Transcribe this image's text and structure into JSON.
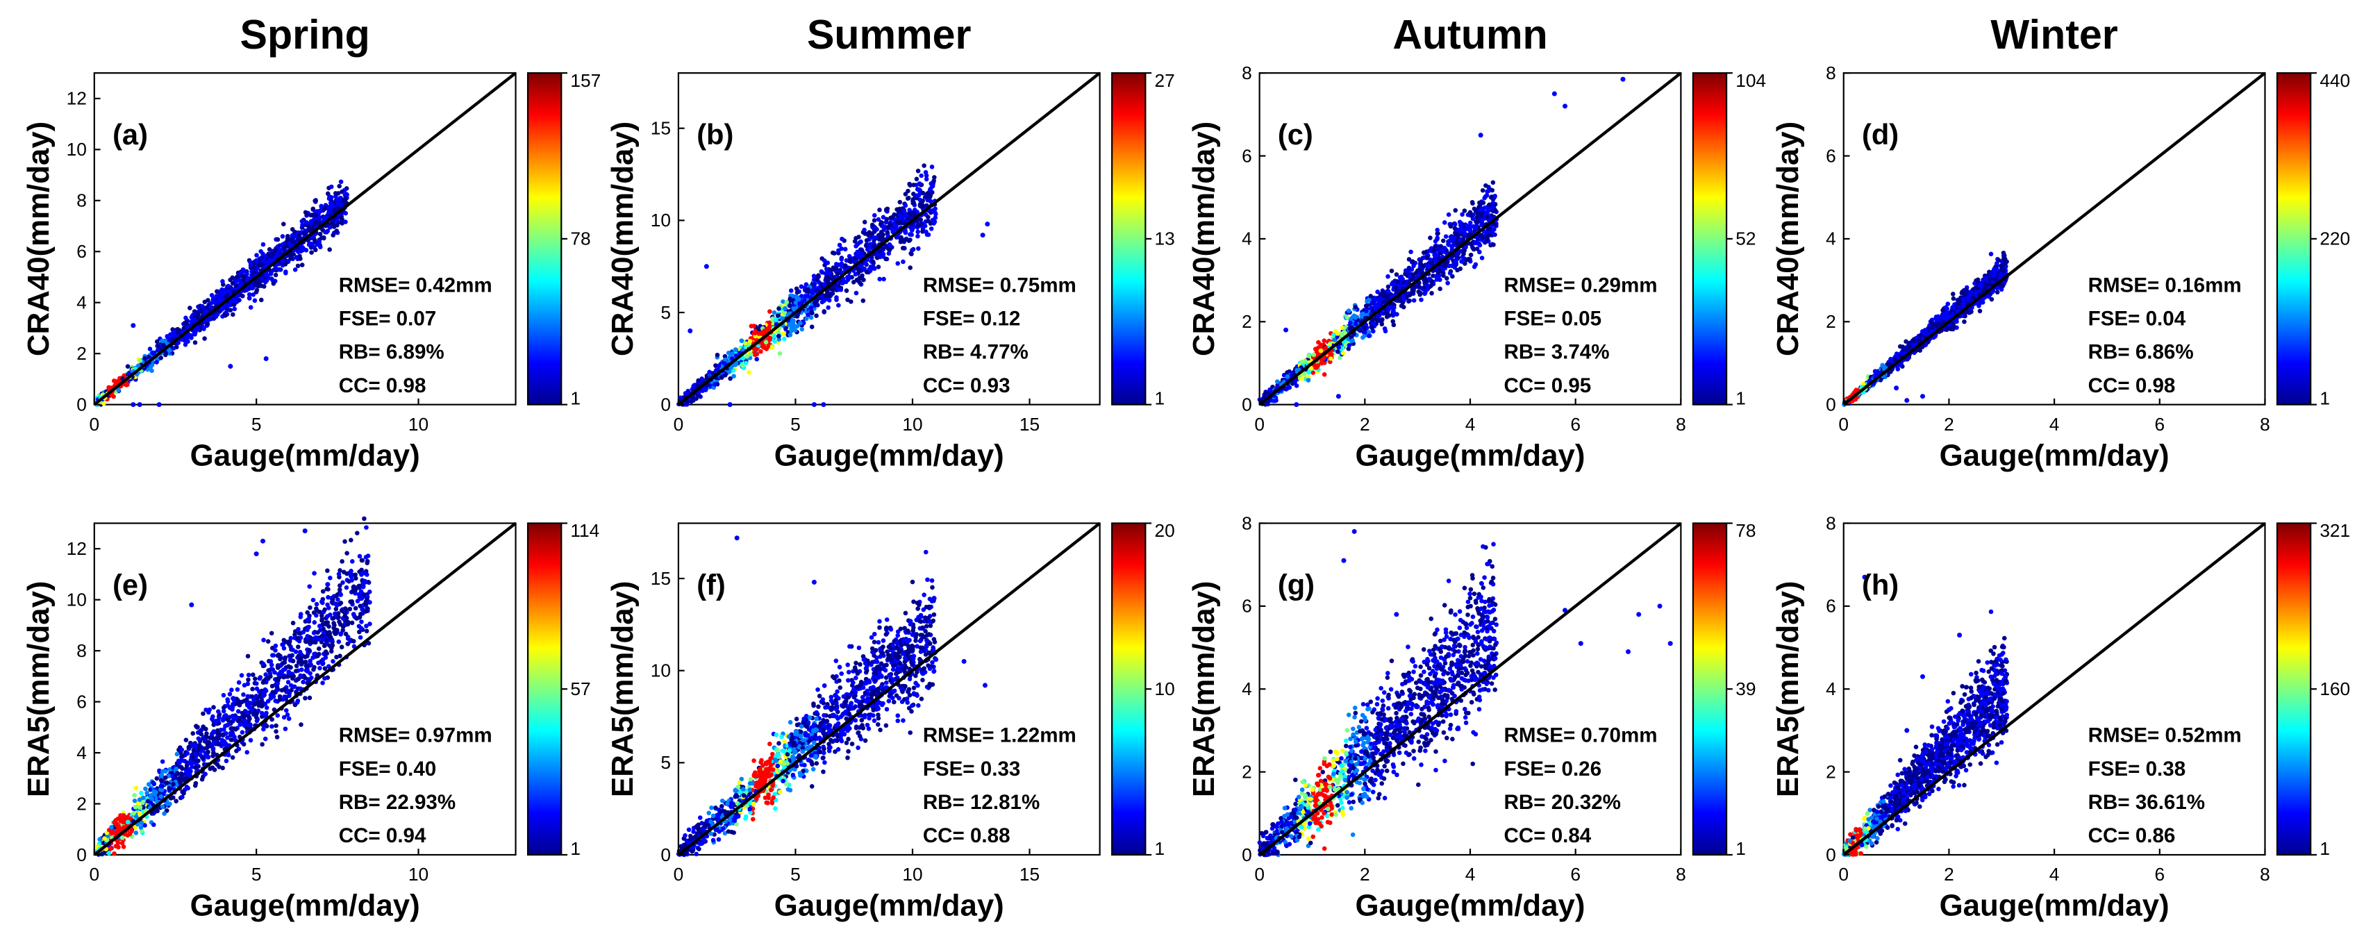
{
  "figure": {
    "columns": [
      "Spring",
      "Summer",
      "Autumn",
      "Winter"
    ],
    "colormap": [
      "#00008f",
      "#0000ff",
      "#0080ff",
      "#00ffff",
      "#80ff80",
      "#ffff00",
      "#ff8000",
      "#ff0000",
      "#800000"
    ]
  },
  "chart_data": [
    {
      "type": "scatter",
      "panel_label": "(a)",
      "season": "Spring",
      "xlabel": "Gauge(mm/day)",
      "ylabel": "CRA40(mm/day)",
      "xlim": [
        0,
        13
      ],
      "ylim": [
        0,
        13
      ],
      "xticks": [
        0,
        5,
        10
      ],
      "yticks": [
        0,
        2,
        4,
        6,
        8,
        10,
        12
      ],
      "stats": {
        "rmse": "RMSE= 0.42mm",
        "fse": "FSE= 0.07",
        "rb": "RB= 6.89%",
        "cc": "CC= 0.98"
      },
      "colorbar": {
        "max": "157",
        "mid": "78",
        "min": "1"
      },
      "cloud": {
        "xmax": 7.8,
        "bias": 1.02,
        "spread": 0.38,
        "hot": 0.7,
        "outliers": [
          [
            1.2,
            3.1
          ],
          [
            4.2,
            1.5
          ],
          [
            5.3,
            1.8
          ],
          [
            1.2,
            0.0
          ],
          [
            1.4,
            0.0
          ],
          [
            2.0,
            0.0
          ]
        ]
      }
    },
    {
      "type": "scatter",
      "panel_label": "(b)",
      "season": "Summer",
      "xlabel": "Gauge(mm/day)",
      "ylabel": "CRA40(mm/day)",
      "xlim": [
        0,
        18
      ],
      "ylim": [
        0,
        18
      ],
      "xticks": [
        0,
        5,
        10,
        15
      ],
      "yticks": [
        0,
        5,
        10,
        15
      ],
      "stats": {
        "rmse": "RMSE= 0.75mm",
        "fse": "FSE= 0.12",
        "rb": "RB= 4.77%",
        "cc": "CC= 0.93"
      },
      "colorbar": {
        "max": "27",
        "mid": "13",
        "min": "1"
      },
      "cloud": {
        "xmax": 11,
        "bias": 1.02,
        "spread": 0.75,
        "hot": 3.5,
        "outliers": [
          [
            13.2,
            9.8
          ],
          [
            13.0,
            9.2
          ],
          [
            0.5,
            4.0
          ],
          [
            1.2,
            7.5
          ],
          [
            5.8,
            0.0
          ],
          [
            6.2,
            0.0
          ],
          [
            2.2,
            0.0
          ]
        ]
      }
    },
    {
      "type": "scatter",
      "panel_label": "(c)",
      "season": "Autumn",
      "xlabel": "Gauge(mm/day)",
      "ylabel": "CRA40(mm/day)",
      "xlim": [
        0,
        8
      ],
      "ylim": [
        0,
        8
      ],
      "xticks": [
        0,
        2,
        4,
        6,
        8
      ],
      "yticks": [
        0,
        2,
        4,
        6,
        8
      ],
      "stats": {
        "rmse": "RMSE= 0.29mm",
        "fse": "FSE= 0.05",
        "rb": "RB= 3.74%",
        "cc": "CC= 0.95"
      },
      "colorbar": {
        "max": "104",
        "mid": "52",
        "min": "1"
      },
      "cloud": {
        "xmax": 4.5,
        "bias": 1.02,
        "spread": 0.3,
        "hot": 1.2,
        "outliers": [
          [
            5.6,
            7.5
          ],
          [
            5.8,
            7.2
          ],
          [
            6.9,
            7.85
          ],
          [
            4.2,
            6.5
          ],
          [
            4.0,
            4.2
          ],
          [
            0.5,
            1.8
          ],
          [
            0.7,
            0.0
          ],
          [
            1.5,
            0.2
          ]
        ]
      }
    },
    {
      "type": "scatter",
      "panel_label": "(d)",
      "season": "Winter",
      "xlabel": "Gauge(mm/day)",
      "ylabel": "CRA40(mm/day)",
      "xlim": [
        0,
        8
      ],
      "ylim": [
        0,
        8
      ],
      "xticks": [
        0,
        2,
        4,
        6,
        8
      ],
      "yticks": [
        0,
        2,
        4,
        6,
        8
      ],
      "stats": {
        "rmse": "RMSE= 0.16mm",
        "fse": "FSE= 0.04",
        "rb": "RB= 6.86%",
        "cc": "CC= 0.98"
      },
      "colorbar": {
        "max": "440",
        "mid": "220",
        "min": "1"
      },
      "cloud": {
        "xmax": 3.1,
        "bias": 1.05,
        "spread": 0.14,
        "hot": 0.15,
        "outliers": [
          [
            1.0,
            0.4
          ],
          [
            1.5,
            0.2
          ],
          [
            1.2,
            0.1
          ],
          [
            0.6,
            0.8
          ]
        ]
      }
    },
    {
      "type": "scatter",
      "panel_label": "(e)",
      "season": "Spring",
      "xlabel": "Gauge(mm/day)",
      "ylabel": "ERA5(mm/day)",
      "xlim": [
        0,
        13
      ],
      "ylim": [
        0,
        13
      ],
      "xticks": [
        0,
        5,
        10
      ],
      "yticks": [
        0,
        2,
        4,
        6,
        8,
        10,
        12
      ],
      "stats": {
        "rmse": "RMSE= 0.97mm",
        "fse": "FSE= 0.40",
        "rb": "RB= 22.93%",
        "cc": "CC= 0.94"
      },
      "colorbar": {
        "max": "114",
        "mid": "57",
        "min": "1"
      },
      "cloud": {
        "xmax": 8.5,
        "bias": 1.22,
        "spread": 0.9,
        "hot": 0.8,
        "outliers": [
          [
            5.0,
            11.8
          ],
          [
            5.2,
            12.3
          ],
          [
            6.5,
            12.7
          ],
          [
            3.0,
            9.8
          ],
          [
            7.2,
            10.6
          ],
          [
            7.6,
            10.2
          ]
        ]
      }
    },
    {
      "type": "scatter",
      "panel_label": "(f)",
      "season": "Summer",
      "xlabel": "Gauge(mm/day)",
      "ylabel": "ERA5(mm/day)",
      "xlim": [
        0,
        18
      ],
      "ylim": [
        0,
        18
      ],
      "xticks": [
        0,
        5,
        10,
        15
      ],
      "yticks": [
        0,
        5,
        10,
        15
      ],
      "stats": {
        "rmse": "RMSE= 1.22mm",
        "fse": "FSE= 0.33",
        "rb": "RB= 12.81%",
        "cc": "CC= 0.88"
      },
      "colorbar": {
        "max": "20",
        "mid": "10",
        "min": "1"
      },
      "cloud": {
        "xmax": 11,
        "bias": 1.1,
        "spread": 1.2,
        "hot": 3.6,
        "outliers": [
          [
            2.5,
            17.2
          ],
          [
            5.8,
            14.8
          ],
          [
            12.2,
            10.5
          ],
          [
            13.1,
            9.2
          ],
          [
            11.0,
            10.6
          ]
        ]
      }
    },
    {
      "type": "scatter",
      "panel_label": "(g)",
      "season": "Autumn",
      "xlabel": "Gauge(mm/day)",
      "ylabel": "ERA5(mm/day)",
      "xlim": [
        0,
        8
      ],
      "ylim": [
        0,
        8
      ],
      "xticks": [
        0,
        2,
        4,
        6,
        8
      ],
      "yticks": [
        0,
        2,
        4,
        6,
        8
      ],
      "stats": {
        "rmse": "RMSE= 0.70mm",
        "fse": "FSE= 0.26",
        "rb": "RB= 20.32%",
        "cc": "CC= 0.84"
      },
      "colorbar": {
        "max": "78",
        "mid": "39",
        "min": "1"
      },
      "cloud": {
        "xmax": 4.5,
        "bias": 1.2,
        "spread": 0.75,
        "hot": 1.2,
        "outliers": [
          [
            1.6,
            7.1
          ],
          [
            1.8,
            7.8
          ],
          [
            2.6,
            5.8
          ],
          [
            5.8,
            5.9
          ],
          [
            6.1,
            5.1
          ],
          [
            7.0,
            4.9
          ],
          [
            7.2,
            5.8
          ],
          [
            7.6,
            6.0
          ],
          [
            7.8,
            5.1
          ]
        ]
      }
    },
    {
      "type": "scatter",
      "panel_label": "(h)",
      "season": "Winter",
      "xlabel": "Gauge(mm/day)",
      "ylabel": "ERA5(mm/day)",
      "xlim": [
        0,
        8
      ],
      "ylim": [
        0,
        8
      ],
      "xticks": [
        0,
        2,
        4,
        6,
        8
      ],
      "yticks": [
        0,
        2,
        4,
        6,
        8
      ],
      "stats": {
        "rmse": "RMSE= 0.52mm",
        "fse": "FSE= 0.38",
        "rb": "RB= 36.61%",
        "cc": "CC= 0.86"
      },
      "colorbar": {
        "max": "321",
        "mid": "160",
        "min": "1"
      },
      "cloud": {
        "xmax": 3.1,
        "bias": 1.3,
        "spread": 0.45,
        "hot": 0.2,
        "outliers": [
          [
            0.4,
            6.7
          ],
          [
            2.2,
            5.3
          ],
          [
            1.5,
            4.3
          ],
          [
            1.2,
            3.0
          ],
          [
            2.0,
            3.5
          ]
        ]
      }
    }
  ]
}
